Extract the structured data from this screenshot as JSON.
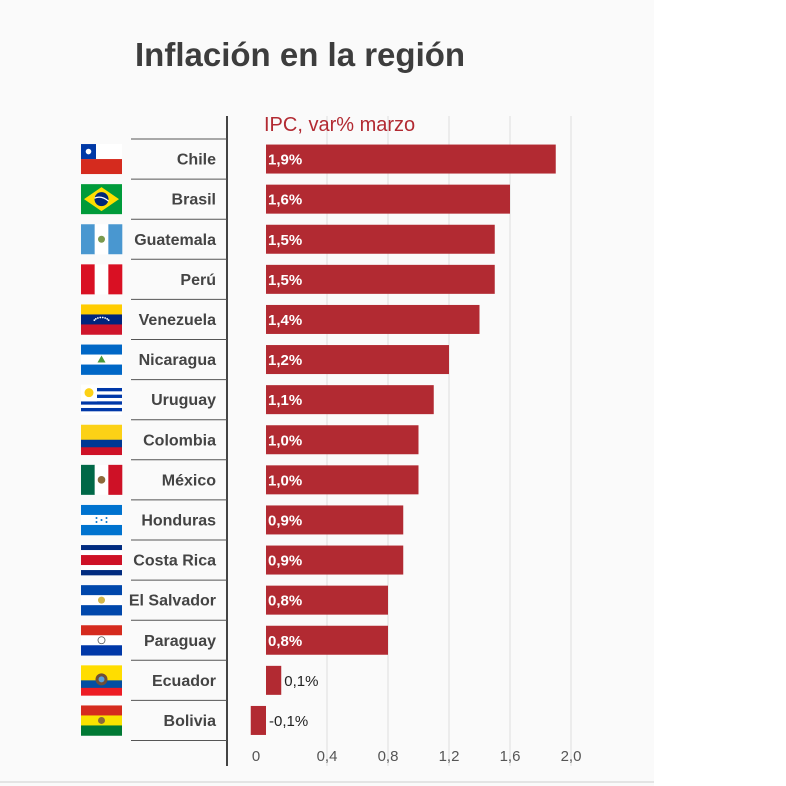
{
  "title": "Inflación en la región",
  "chart_data": {
    "type": "bar",
    "orientation": "horizontal",
    "subtitle": "IPC, var% marzo",
    "categories": [
      "Chile",
      "Brasil",
      "Guatemala",
      "Perú",
      "Venezuela",
      "Nicaragua",
      "Uruguay",
      "Colombia",
      "México",
      "Honduras",
      "Costa Rica",
      "El Salvador",
      "Paraguay",
      "Ecuador",
      "Bolivia"
    ],
    "values": [
      1.9,
      1.6,
      1.5,
      1.5,
      1.4,
      1.2,
      1.1,
      1.0,
      1.0,
      0.9,
      0.9,
      0.8,
      0.8,
      0.1,
      -0.1
    ],
    "data_labels": [
      "1,9%",
      "1,6%",
      "1,5%",
      "1,5%",
      "1,4%",
      "1,2%",
      "1,1%",
      "1,0%",
      "1,0%",
      "0,9%",
      "0,9%",
      "0,8%",
      "0,8%",
      "0,1%",
      "-0,1%"
    ],
    "xlim": [
      -0.26,
      2.05
    ],
    "xticks": [
      0,
      0.4,
      0.8,
      1.2,
      1.6,
      2.0
    ],
    "xtick_labels": [
      "0",
      "0,4",
      "0,8",
      "1,2",
      "1,6",
      "2,0"
    ],
    "grid": true,
    "legend": "none",
    "colors": {
      "bar": "#b22a32",
      "subtitle": "#b22a32",
      "grid": "#dddddd",
      "axis": "#444444"
    }
  }
}
